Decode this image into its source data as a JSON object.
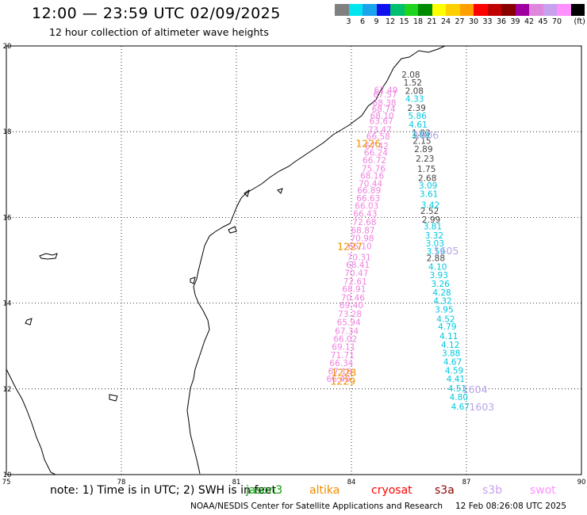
{
  "header": {
    "title": "12:00 — 23:59 UTC 02/09/2025",
    "subtitle": "12 hour collection of altimeter wave heights"
  },
  "colorbar": {
    "unit": "(ft)",
    "colors": [
      "#808080",
      "#00e5ee",
      "#1ca3ee",
      "#1010ee",
      "#00c070",
      "#1ed41e",
      "#008c00",
      "#ffff00",
      "#ffd000",
      "#ffa000",
      "#ff0000",
      "#c00000",
      "#880000",
      "#a000a0",
      "#dd88dd",
      "#c8a0ee",
      "#ff90ff",
      "#000000"
    ],
    "labels": [
      "3",
      "6",
      "9",
      "12",
      "15",
      "18",
      "21",
      "24",
      "27",
      "30",
      "33",
      "36",
      "39",
      "42",
      "45",
      "70"
    ]
  },
  "map": {
    "x_ticks": [
      "75",
      "78",
      "81",
      "84",
      "87",
      "90"
    ],
    "y_ticks": [
      "20",
      "18",
      "16",
      "14",
      "12",
      "10"
    ]
  },
  "track_colors": {
    "pink": "#f080e0",
    "gray": "#444444",
    "cyan": "#00c8e0",
    "orange": "#f08c00",
    "lavender": "#b8a4e8"
  },
  "tracks": [
    {
      "color": "pink",
      "points": [
        {
          "lon": 84.9,
          "lat": 18.9,
          "swh": "67.49"
        },
        {
          "lon": 84.88,
          "lat": 18.8,
          "swh": "67.57"
        },
        {
          "lon": 84.86,
          "lat": 18.6,
          "swh": "68.38"
        },
        {
          "lon": 84.84,
          "lat": 18.46,
          "swh": "68.74"
        },
        {
          "lon": 84.8,
          "lat": 18.3,
          "swh": "68.10"
        },
        {
          "lon": 84.78,
          "lat": 18.18,
          "swh": "63.67"
        },
        {
          "lon": 84.74,
          "lat": 17.98,
          "swh": "73.47"
        },
        {
          "lon": 84.7,
          "lat": 17.82,
          "swh": "66.58"
        },
        {
          "lon": 84.66,
          "lat": 17.6,
          "swh": "67.42"
        },
        {
          "lon": 84.64,
          "lat": 17.44,
          "swh": "66.24"
        },
        {
          "lon": 84.6,
          "lat": 17.26,
          "swh": "66.72"
        },
        {
          "lon": 84.58,
          "lat": 17.07,
          "swh": "75.76"
        },
        {
          "lon": 84.54,
          "lat": 16.9,
          "swh": "68.16"
        },
        {
          "lon": 84.5,
          "lat": 16.72,
          "swh": "70.44"
        },
        {
          "lon": 84.46,
          "lat": 16.56,
          "swh": "66.89"
        },
        {
          "lon": 84.44,
          "lat": 16.38,
          "swh": "66.63"
        },
        {
          "lon": 84.4,
          "lat": 16.2,
          "swh": "66.03"
        },
        {
          "lon": 84.36,
          "lat": 16.02,
          "swh": "66.43"
        },
        {
          "lon": 84.34,
          "lat": 15.82,
          "swh": "72.68"
        },
        {
          "lon": 84.3,
          "lat": 15.63,
          "swh": "68.87"
        },
        {
          "lon": 84.28,
          "lat": 15.44,
          "swh": "70.98"
        },
        {
          "lon": 84.22,
          "lat": 15.26,
          "swh": "66.10"
        },
        {
          "lon": 84.2,
          "lat": 15.0,
          "swh": "70.31"
        },
        {
          "lon": 84.17,
          "lat": 14.82,
          "swh": "68.41"
        },
        {
          "lon": 84.13,
          "lat": 14.63,
          "swh": "70.47"
        },
        {
          "lon": 84.1,
          "lat": 14.44,
          "swh": "72.61"
        },
        {
          "lon": 84.07,
          "lat": 14.26,
          "swh": "68.91"
        },
        {
          "lon": 84.04,
          "lat": 14.06,
          "swh": "70.46"
        },
        {
          "lon": 84.0,
          "lat": 13.88,
          "swh": "69.40"
        },
        {
          "lon": 83.96,
          "lat": 13.68,
          "swh": "73.28"
        },
        {
          "lon": 83.93,
          "lat": 13.48,
          "swh": "65.94"
        },
        {
          "lon": 83.88,
          "lat": 13.28,
          "swh": "67.34"
        },
        {
          "lon": 83.84,
          "lat": 13.1,
          "swh": "66.02"
        },
        {
          "lon": 83.8,
          "lat": 12.91,
          "swh": "69.11"
        },
        {
          "lon": 83.77,
          "lat": 12.72,
          "swh": "71.71"
        },
        {
          "lon": 83.74,
          "lat": 12.53,
          "swh": "66.34"
        },
        {
          "lon": 83.7,
          "lat": 12.34,
          "swh": "67.16"
        },
        {
          "lon": 83.66,
          "lat": 12.16,
          "swh": "66.40"
        }
      ]
    },
    {
      "color": "gray",
      "points": [
        {
          "lon": 85.55,
          "lat": 19.26,
          "swh": "2.08"
        },
        {
          "lon": 85.6,
          "lat": 19.08,
          "swh": "1.52"
        },
        {
          "lon": 85.64,
          "lat": 18.88,
          "swh": "2.08"
        },
        {
          "lon": 85.7,
          "lat": 18.48,
          "swh": "2.39"
        },
        {
          "lon": 85.82,
          "lat": 17.9,
          "swh": "1.83"
        },
        {
          "lon": 85.84,
          "lat": 17.72,
          "swh": "2.15"
        },
        {
          "lon": 85.88,
          "lat": 17.52,
          "swh": "2.89"
        },
        {
          "lon": 85.92,
          "lat": 17.3,
          "swh": "2.23"
        },
        {
          "lon": 85.96,
          "lat": 17.06,
          "swh": "1.75"
        },
        {
          "lon": 85.98,
          "lat": 16.85,
          "swh": "2.68"
        },
        {
          "lon": 86.04,
          "lat": 16.08,
          "swh": "2.52"
        },
        {
          "lon": 86.08,
          "lat": 15.88,
          "swh": "2.99"
        },
        {
          "lon": 86.2,
          "lat": 14.98,
          "swh": "2.88"
        }
      ]
    },
    {
      "color": "cyan",
      "points": [
        {
          "lon": 85.65,
          "lat": 18.7,
          "swh": "4.33"
        },
        {
          "lon": 85.72,
          "lat": 18.3,
          "swh": "5.86"
        },
        {
          "lon": 85.74,
          "lat": 18.1,
          "swh": "4.61"
        },
        {
          "lon": 85.8,
          "lat": 17.86,
          "swh": "3.08"
        },
        {
          "lon": 86.0,
          "lat": 16.67,
          "swh": "3.09"
        },
        {
          "lon": 86.02,
          "lat": 16.48,
          "swh": "3.61"
        },
        {
          "lon": 86.06,
          "lat": 16.22,
          "swh": "3.42"
        },
        {
          "lon": 86.12,
          "lat": 15.72,
          "swh": "3.81"
        },
        {
          "lon": 86.16,
          "lat": 15.51,
          "swh": "3.32"
        },
        {
          "lon": 86.18,
          "lat": 15.32,
          "swh": "3.03"
        },
        {
          "lon": 86.2,
          "lat": 15.14,
          "swh": "3.59"
        },
        {
          "lon": 86.25,
          "lat": 14.78,
          "swh": "4.10"
        },
        {
          "lon": 86.28,
          "lat": 14.58,
          "swh": "3.93"
        },
        {
          "lon": 86.32,
          "lat": 14.38,
          "swh": "3.26"
        },
        {
          "lon": 86.36,
          "lat": 14.18,
          "swh": "4.28"
        },
        {
          "lon": 86.38,
          "lat": 13.98,
          "swh": "4.32"
        },
        {
          "lon": 86.42,
          "lat": 13.78,
          "swh": "3.95"
        },
        {
          "lon": 86.46,
          "lat": 13.56,
          "swh": "4.52"
        },
        {
          "lon": 86.5,
          "lat": 13.38,
          "swh": "4.79"
        },
        {
          "lon": 86.54,
          "lat": 13.16,
          "swh": "4.11"
        },
        {
          "lon": 86.58,
          "lat": 12.96,
          "swh": "4.12"
        },
        {
          "lon": 86.6,
          "lat": 12.76,
          "swh": "3.88"
        },
        {
          "lon": 86.64,
          "lat": 12.56,
          "swh": "4.67"
        },
        {
          "lon": 86.68,
          "lat": 12.36,
          "swh": "4.59"
        },
        {
          "lon": 86.72,
          "lat": 12.16,
          "swh": "4.41"
        },
        {
          "lon": 86.76,
          "lat": 11.94,
          "swh": "4.51"
        },
        {
          "lon": 86.8,
          "lat": 11.74,
          "swh": "4.80"
        },
        {
          "lon": 86.84,
          "lat": 11.52,
          "swh": "4.67"
        }
      ]
    }
  ],
  "pass_labels": [
    {
      "color": "lavender",
      "lon": 85.95,
      "lat": 17.84,
      "text": "1606"
    },
    {
      "color": "orange",
      "lon": 84.44,
      "lat": 17.64,
      "text": "1226"
    },
    {
      "color": "lavender",
      "lon": 86.47,
      "lat": 15.14,
      "text": "1605"
    },
    {
      "color": "orange",
      "lon": 83.96,
      "lat": 15.24,
      "text": "1227"
    },
    {
      "color": "lavender",
      "lon": 87.22,
      "lat": 11.9,
      "text": "1604"
    },
    {
      "color": "orange",
      "lon": 83.8,
      "lat": 12.3,
      "text": "1228"
    },
    {
      "color": "orange",
      "lon": 83.78,
      "lat": 12.1,
      "text": "1229"
    },
    {
      "color": "lavender",
      "lon": 87.4,
      "lat": 11.5,
      "text": "1603"
    }
  ],
  "footer": {
    "note": "note:  1) Time is in UTC; 2) SWH is in feet",
    "legend": [
      {
        "label": "jason3",
        "color": "#00a000"
      },
      {
        "label": "altika",
        "color": "#f08c00"
      },
      {
        "label": "cryosat",
        "color": "#ff0000"
      },
      {
        "label": "s3a",
        "color": "#8b0000"
      },
      {
        "label": "s3b",
        "color": "#c8a0ee"
      },
      {
        "label": "swot",
        "color": "#ff90ff"
      }
    ],
    "credit": "NOAA/NESDIS Center for Satellite Applications and Research",
    "timestamp": "12 Feb 08:26:08 UTC 2025"
  }
}
